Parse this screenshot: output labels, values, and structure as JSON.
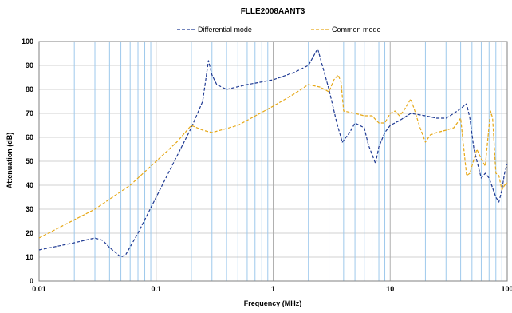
{
  "chart_data": {
    "type": "line",
    "title": "FLLE2008AANT3",
    "xlabel": "Frequency (MHz)",
    "ylabel": "Attenuation (dB)",
    "xscale": "log",
    "xlim": [
      0.01,
      100
    ],
    "ylim": [
      0,
      100
    ],
    "x_ticks": [
      0.01,
      0.1,
      1,
      10,
      100
    ],
    "x_tick_labels": [
      "0.01",
      "0.1",
      "1",
      "10",
      "100"
    ],
    "y_ticks": [
      0,
      10,
      20,
      30,
      40,
      50,
      60,
      70,
      80,
      90,
      100
    ],
    "y_tick_labels": [
      "0",
      "10",
      "20",
      "30",
      "40",
      "50",
      "60",
      "70",
      "80",
      "90",
      "100"
    ],
    "grid": true,
    "legend_position": "top",
    "series": [
      {
        "name": "Differential mode",
        "color": "#1f3a93",
        "style": "dashed",
        "points": [
          [
            0.01,
            13
          ],
          [
            0.02,
            16
          ],
          [
            0.03,
            18
          ],
          [
            0.035,
            17
          ],
          [
            0.04,
            14
          ],
          [
            0.05,
            10
          ],
          [
            0.055,
            11
          ],
          [
            0.07,
            20
          ],
          [
            0.1,
            35
          ],
          [
            0.15,
            52
          ],
          [
            0.2,
            64
          ],
          [
            0.25,
            75
          ],
          [
            0.28,
            92
          ],
          [
            0.3,
            86
          ],
          [
            0.33,
            82
          ],
          [
            0.4,
            80
          ],
          [
            0.6,
            82
          ],
          [
            1,
            84
          ],
          [
            1.5,
            87
          ],
          [
            2,
            90
          ],
          [
            2.4,
            97
          ],
          [
            2.7,
            88
          ],
          [
            3,
            80
          ],
          [
            3.5,
            66
          ],
          [
            3.9,
            58
          ],
          [
            4.5,
            62
          ],
          [
            5,
            66
          ],
          [
            6,
            64
          ],
          [
            6.5,
            57
          ],
          [
            7.5,
            49
          ],
          [
            8,
            56
          ],
          [
            9,
            62
          ],
          [
            10,
            65
          ],
          [
            12,
            67
          ],
          [
            15,
            70
          ],
          [
            20,
            69
          ],
          [
            25,
            68
          ],
          [
            30,
            68
          ],
          [
            35,
            70
          ],
          [
            40,
            72
          ],
          [
            45,
            74
          ],
          [
            48,
            68
          ],
          [
            52,
            55
          ],
          [
            60,
            43
          ],
          [
            65,
            45
          ],
          [
            70,
            43
          ],
          [
            80,
            35
          ],
          [
            85,
            33
          ],
          [
            90,
            38
          ],
          [
            95,
            45
          ],
          [
            100,
            49
          ]
        ]
      },
      {
        "name": "Common mode",
        "color": "#e6a817",
        "style": "dashed",
        "points": [
          [
            0.01,
            18
          ],
          [
            0.03,
            30
          ],
          [
            0.06,
            40
          ],
          [
            0.1,
            50
          ],
          [
            0.15,
            58
          ],
          [
            0.2,
            65
          ],
          [
            0.25,
            63
          ],
          [
            0.3,
            62
          ],
          [
            0.5,
            65
          ],
          [
            1,
            73
          ],
          [
            1.5,
            78
          ],
          [
            2,
            82
          ],
          [
            2.5,
            81
          ],
          [
            3,
            79
          ],
          [
            3.3,
            84
          ],
          [
            3.6,
            86
          ],
          [
            3.8,
            83
          ],
          [
            4,
            71
          ],
          [
            5,
            70
          ],
          [
            6,
            69
          ],
          [
            7,
            69
          ],
          [
            8,
            66
          ],
          [
            9,
            66
          ],
          [
            10,
            70
          ],
          [
            11,
            71
          ],
          [
            12,
            69
          ],
          [
            13,
            71
          ],
          [
            15,
            76
          ],
          [
            16,
            72
          ],
          [
            18,
            64
          ],
          [
            20,
            58
          ],
          [
            22,
            61
          ],
          [
            25,
            62
          ],
          [
            30,
            63
          ],
          [
            35,
            64
          ],
          [
            40,
            68
          ],
          [
            42,
            58
          ],
          [
            45,
            44
          ],
          [
            48,
            45
          ],
          [
            55,
            55
          ],
          [
            60,
            51
          ],
          [
            65,
            48
          ],
          [
            70,
            65
          ],
          [
            72,
            71
          ],
          [
            75,
            68
          ],
          [
            80,
            45
          ],
          [
            85,
            44
          ],
          [
            90,
            38
          ],
          [
            95,
            40
          ],
          [
            100,
            41
          ]
        ]
      }
    ]
  }
}
